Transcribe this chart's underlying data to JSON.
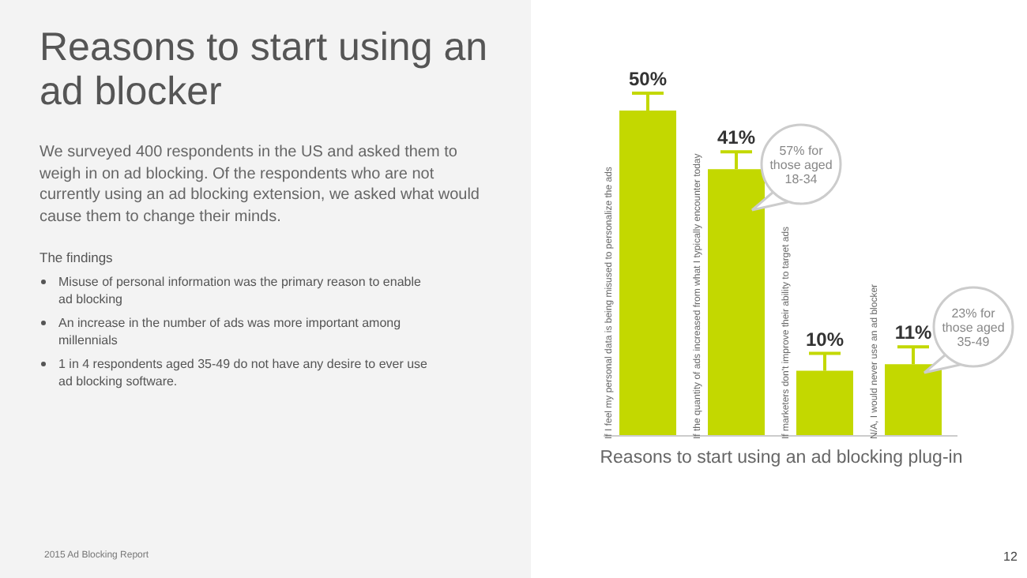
{
  "chart_data": {
    "type": "bar",
    "title": "Reasons to start using an ad blocker",
    "subtitle": "We surveyed 400 respondents in the US and asked them to weigh in on ad blocking. Of the respondents who are not currently using an ad blocking extension, we asked what would cause them to change their minds.",
    "xlabel": "Reasons to start using an ad blocking plug-in",
    "categories": [
      "If I feel my personal data is being misused to personalize the ads",
      "If the quantity of ads increased from what I typically encounter today",
      "If marketers don't improve their ability to target ads",
      "N/A, I would never use an ad blocker"
    ],
    "values": [
      50,
      41,
      10,
      11
    ],
    "value_labels": [
      "50%",
      "41%",
      "10%",
      "11%"
    ],
    "color": "#c3d800",
    "annotations": [
      "The findings",
      "Misuse of personal information was the primary reason to enable ad blocking",
      "An increase in the number of ads was more important among millennials",
      "1 in 4 respondents aged 35-49 do not have any desire to ever use ad blocking software.",
      "2015 Ad Blocking Report",
      "12",
      "57% for those aged 18-34",
      "23% for those aged 35-49"
    ]
  }
}
